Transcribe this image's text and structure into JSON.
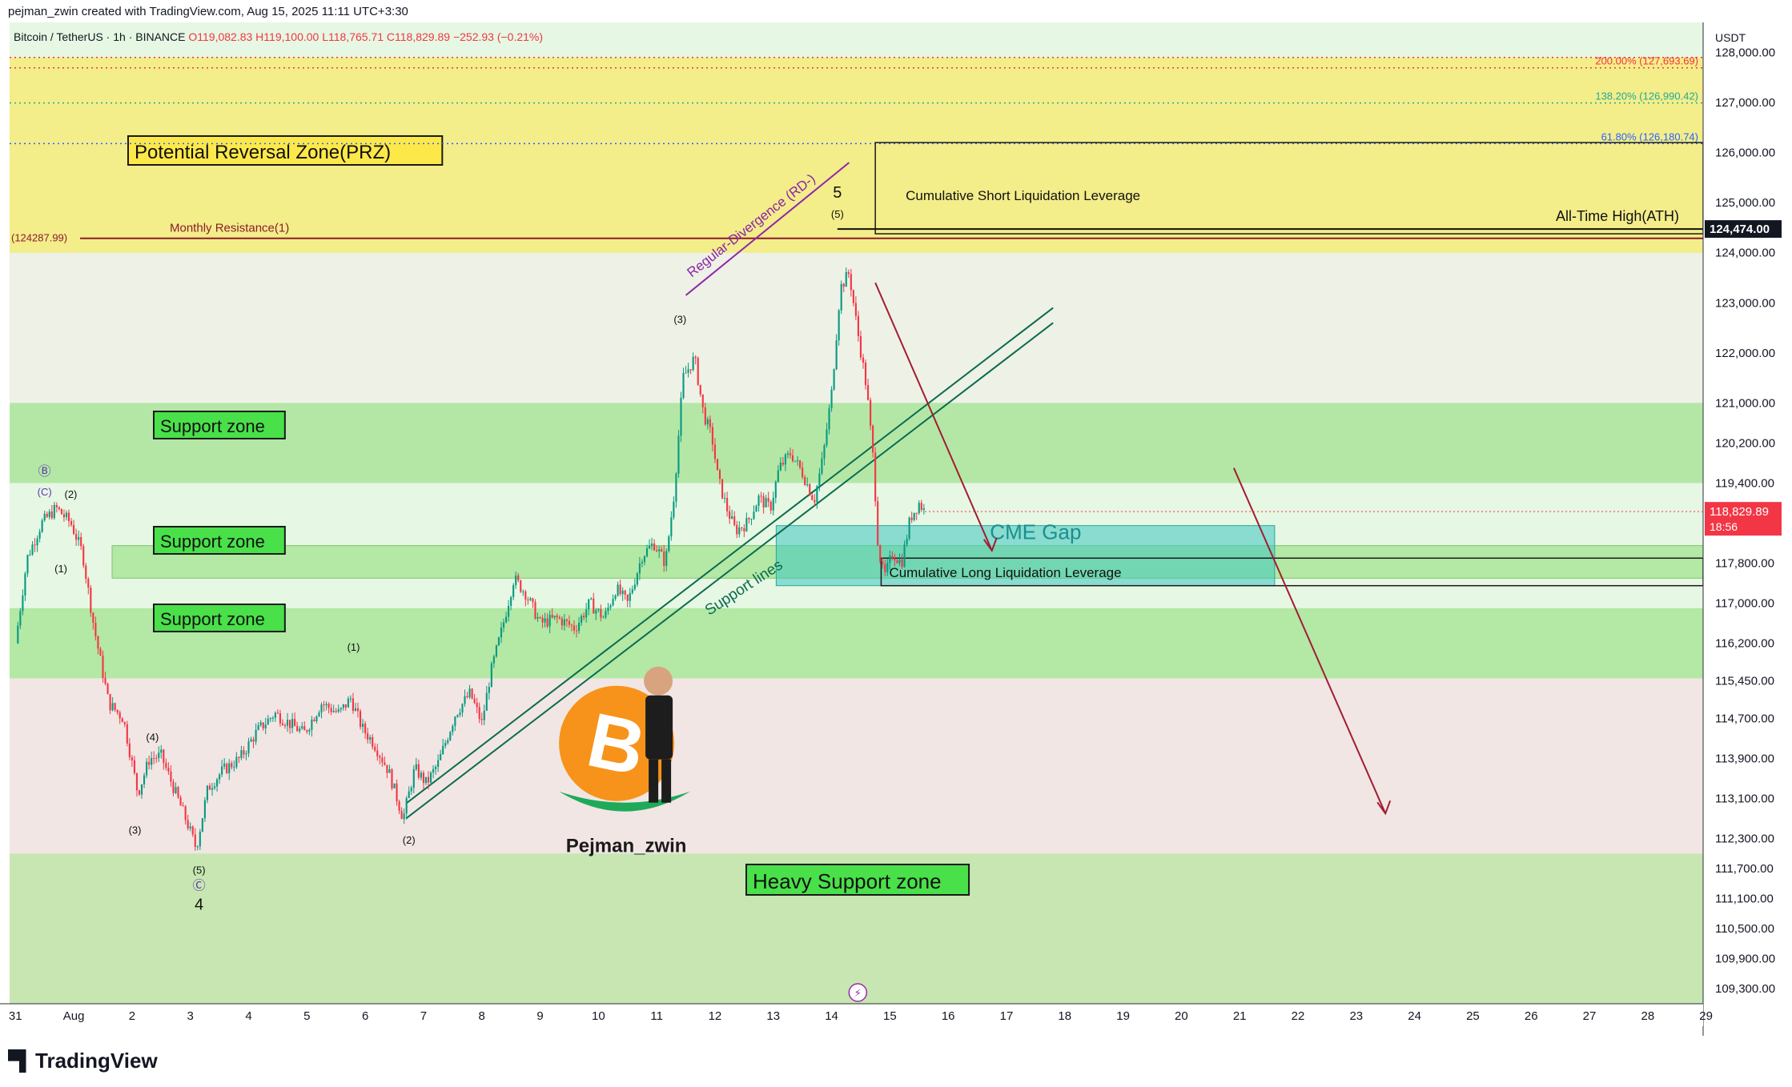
{
  "header": {
    "created_by": "pejman_zwin created with TradingView.com, Aug 15, 2025 11:11 UTC+3:30"
  },
  "symbol": {
    "name": "Bitcoin / TetherUS · 1h · BINANCE",
    "ohlc": "O119,082.83 H119,100.00 L118,765.71 C118,829.89 −252.93 (−0.21%)"
  },
  "footer": {
    "brand": "TradingView"
  },
  "colors": {
    "up": "#089981",
    "down": "#f23645",
    "support": "#7ed957",
    "prz": "#f5e642",
    "cme": "#4fd1c5",
    "trendline": "#0b6b4f",
    "arrow": "#a01d32"
  },
  "chart_data": {
    "type": "candlestick",
    "title": "",
    "currency": "USDT",
    "ylim": [
      109000,
      128600
    ],
    "y_ticks": [
      "128,000.00",
      "127,000.00",
      "126,000.00",
      "125,000.00",
      "124,000.00",
      "123,000.00",
      "122,000.00",
      "121,000.00",
      "120,200.00",
      "119,400.00",
      "117,800.00",
      "117,000.00",
      "116,200.00",
      "115,450.00",
      "114,700.00",
      "113,900.00",
      "113,100.00",
      "112,300.00",
      "111,700.00",
      "111,100.00",
      "110,500.00",
      "109,900.00",
      "109,300.00"
    ],
    "x_ticks": [
      "31",
      "Aug",
      "2",
      "3",
      "4",
      "5",
      "6",
      "7",
      "8",
      "9",
      "10",
      "11",
      "12",
      "13",
      "14",
      "15",
      "16",
      "17",
      "18",
      "19",
      "20",
      "21",
      "22",
      "23",
      "24",
      "25",
      "26",
      "27",
      "28",
      "29"
    ],
    "last_price": {
      "label": "118,829.89",
      "countdown": "18:56",
      "value": 118829.89
    },
    "ath": {
      "label": "124,474.00",
      "value": 124474,
      "text": "All-Time High(ATH)"
    },
    "monthly_resistance": {
      "value": 124287.99,
      "label": "Monthly Resistance(1)",
      "price_label": "(124287.99)"
    },
    "fib_levels": [
      {
        "label": "200.00% (127,693.69)",
        "value": 127693.69,
        "color": "#f23645"
      },
      {
        "label": "138.20% (126,990.42)",
        "value": 126990.42,
        "color": "#22ab94"
      },
      {
        "label": "61.80% (126,180.74)",
        "value": 126180.74,
        "color": "#2962ff"
      }
    ],
    "zones": [
      {
        "label": "Potential Reversal Zone(PRZ)",
        "from": 124000,
        "to": 127900,
        "kind": "prz"
      },
      {
        "label": "Support zone",
        "from": 119400,
        "to": 121000,
        "kind": "support"
      },
      {
        "label": "Support zone",
        "from": 117500,
        "to": 118150,
        "kind": "support"
      },
      {
        "label": "Support zone",
        "from": 115500,
        "to": 116900,
        "kind": "support"
      },
      {
        "label": "Heavy Support zone",
        "from": 109000,
        "to": 112000,
        "kind": "heavy"
      }
    ],
    "annotations": {
      "cme_gap": "CME Gap",
      "short_liq": "Cumulative Short Liquidation Leverage",
      "long_liq": "Cumulative Long Liquidation Leverage",
      "support_lines": "Support lines",
      "divergence": "Regular-Divergence (RD-)",
      "watermark": "Pejman_zwin",
      "bitcoin_symbol": "B"
    },
    "wave_labels": [
      {
        "text": "Ⓑ",
        "t": 0.5,
        "p": 119550
      },
      {
        "text": "(C)",
        "t": 0.5,
        "p": 119150
      },
      {
        "text": "(2)",
        "t": 0.95,
        "p": 119100
      },
      {
        "text": "(1)",
        "t": 0.78,
        "p": 117620
      },
      {
        "text": "(4)",
        "t": 2.35,
        "p": 114250
      },
      {
        "text": "(3)",
        "t": 2.05,
        "p": 112400
      },
      {
        "text": "(5)",
        "t": 3.15,
        "p": 111600
      },
      {
        "text": "Ⓒ",
        "t": 3.15,
        "p": 111280
      },
      {
        "text": "4",
        "t": 3.15,
        "p": 110880
      },
      {
        "text": "(1)",
        "t": 5.8,
        "p": 116050
      },
      {
        "text": "(2)",
        "t": 6.75,
        "p": 112200
      },
      {
        "text": "(3)",
        "t": 11.4,
        "p": 122600
      },
      {
        "text": "5",
        "t": 14.1,
        "p": 125100
      },
      {
        "text": "(5)",
        "t": 14.1,
        "p": 124700
      }
    ],
    "price_path": [
      [
        0.0,
        116200
      ],
      [
        0.2,
        117900
      ],
      [
        0.45,
        118600
      ],
      [
        0.7,
        118900
      ],
      [
        0.95,
        118600
      ],
      [
        1.15,
        118000
      ],
      [
        1.35,
        116500
      ],
      [
        1.6,
        115000
      ],
      [
        1.85,
        114700
      ],
      [
        2.1,
        113200
      ],
      [
        2.3,
        113900
      ],
      [
        2.5,
        113950
      ],
      [
        2.75,
        113200
      ],
      [
        2.95,
        112600
      ],
      [
        3.1,
        112100
      ],
      [
        3.3,
        113300
      ],
      [
        3.55,
        113650
      ],
      [
        3.85,
        113900
      ],
      [
        4.15,
        114450
      ],
      [
        4.45,
        114800
      ],
      [
        4.7,
        114600
      ],
      [
        4.95,
        114400
      ],
      [
        5.25,
        115000
      ],
      [
        5.55,
        114800
      ],
      [
        5.75,
        115100
      ],
      [
        5.95,
        114500
      ],
      [
        6.15,
        114200
      ],
      [
        6.4,
        113650
      ],
      [
        6.65,
        112700
      ],
      [
        6.85,
        113700
      ],
      [
        7.05,
        113400
      ],
      [
        7.25,
        113800
      ],
      [
        7.55,
        114800
      ],
      [
        7.8,
        115200
      ],
      [
        8.0,
        114600
      ],
      [
        8.15,
        115600
      ],
      [
        8.35,
        116500
      ],
      [
        8.55,
        117500
      ],
      [
        8.75,
        117200
      ],
      [
        9.0,
        116600
      ],
      [
        9.3,
        116700
      ],
      [
        9.6,
        116500
      ],
      [
        9.85,
        117000
      ],
      [
        10.1,
        116700
      ],
      [
        10.3,
        117300
      ],
      [
        10.5,
        117000
      ],
      [
        10.75,
        117950
      ],
      [
        10.95,
        118200
      ],
      [
        11.15,
        117800
      ],
      [
        11.3,
        119200
      ],
      [
        11.45,
        121500
      ],
      [
        11.65,
        121900
      ],
      [
        11.8,
        120800
      ],
      [
        11.95,
        120300
      ],
      [
        12.05,
        119500
      ],
      [
        12.2,
        118900
      ],
      [
        12.35,
        118450
      ],
      [
        12.55,
        118600
      ],
      [
        12.75,
        119100
      ],
      [
        12.95,
        118900
      ],
      [
        13.1,
        119700
      ],
      [
        13.3,
        120000
      ],
      [
        13.5,
        119600
      ],
      [
        13.7,
        119050
      ],
      [
        13.85,
        119900
      ],
      [
        14.0,
        121200
      ],
      [
        14.15,
        123300
      ],
      [
        14.3,
        123600
      ],
      [
        14.45,
        122400
      ],
      [
        14.6,
        121300
      ],
      [
        14.72,
        119800
      ],
      [
        14.8,
        118100
      ],
      [
        14.9,
        117500
      ],
      [
        15.05,
        118000
      ],
      [
        15.2,
        117800
      ],
      [
        15.35,
        118700
      ],
      [
        15.5,
        119000
      ],
      [
        15.6,
        118830
      ]
    ]
  }
}
